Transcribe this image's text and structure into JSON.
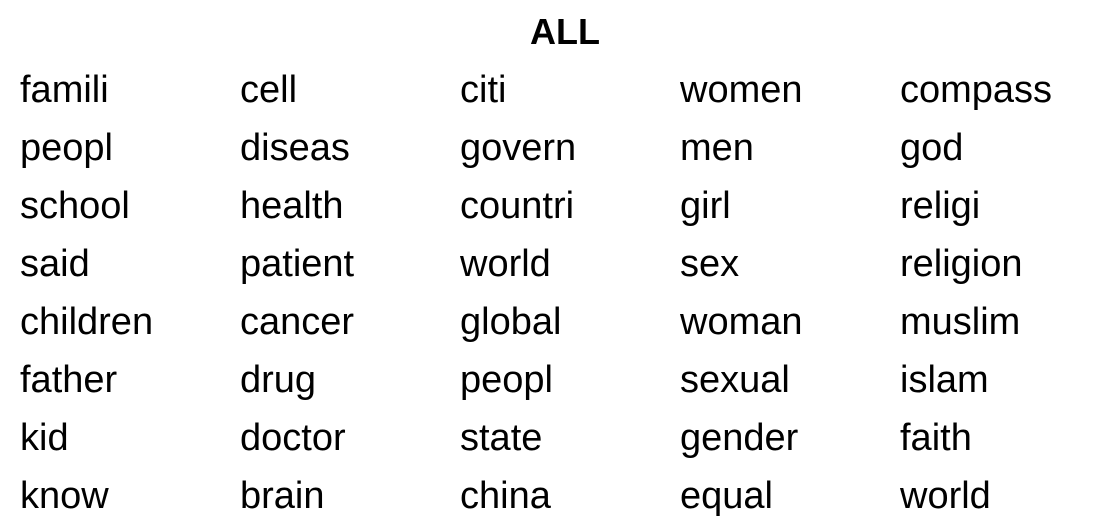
{
  "title": "ALL",
  "rows": [
    [
      "famili",
      "cell",
      "citi",
      "women",
      "compass"
    ],
    [
      "peopl",
      "diseas",
      "govern",
      "men",
      "god"
    ],
    [
      "school",
      "health",
      "countri",
      "girl",
      "religi"
    ],
    [
      "said",
      "patient",
      "world",
      "sex",
      "religion"
    ],
    [
      "children",
      "cancer",
      "global",
      "woman",
      "muslim"
    ],
    [
      "father",
      "drug",
      "peopl",
      "sexual",
      "islam"
    ],
    [
      "kid",
      "doctor",
      "state",
      "gender",
      "faith"
    ],
    [
      "know",
      "brain",
      "china",
      "equal",
      "world"
    ]
  ]
}
